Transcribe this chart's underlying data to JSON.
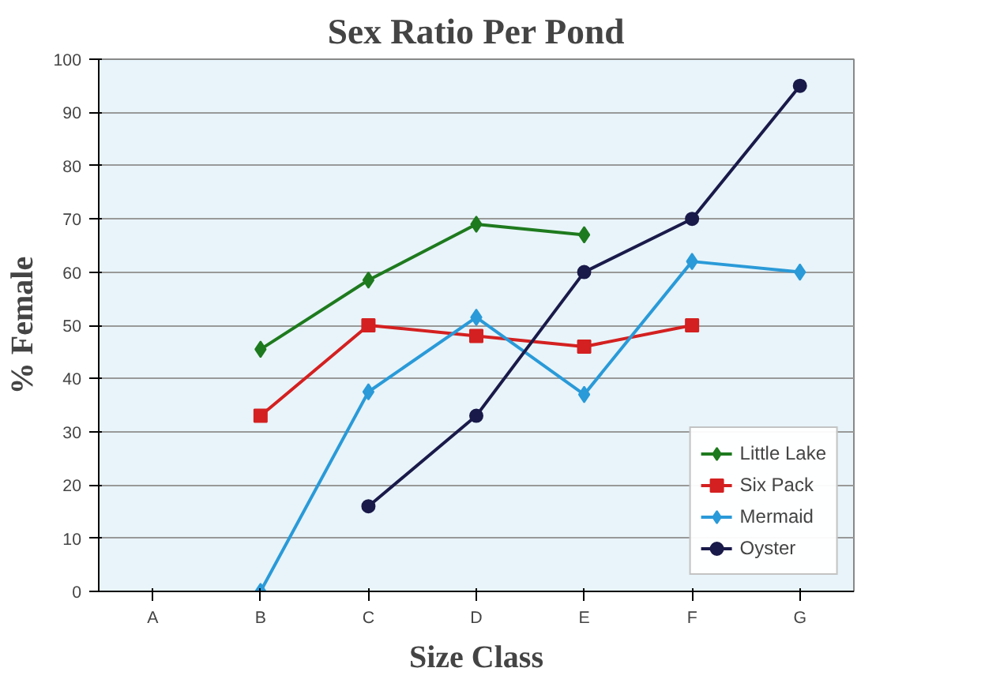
{
  "chart_data": {
    "type": "line",
    "title": "Sex Ratio Per Pond",
    "xlabel": "Size Class",
    "ylabel": "% Female",
    "categories": [
      "A",
      "B",
      "C",
      "D",
      "E",
      "F",
      "G"
    ],
    "series": [
      {
        "name": "Little Lake",
        "color": "#1e7a1e",
        "marker": "diamond",
        "values": [
          null,
          45.5,
          58.5,
          69,
          67,
          null,
          null
        ]
      },
      {
        "name": "Six Pack",
        "color": "#d42020",
        "marker": "square",
        "values": [
          null,
          33,
          50,
          48,
          46,
          50,
          null
        ]
      },
      {
        "name": "Mermaid",
        "color": "#2a9ad8",
        "marker": "diamond",
        "values": [
          null,
          0,
          37.5,
          51.5,
          37,
          62,
          60
        ]
      },
      {
        "name": "Oyster",
        "color": "#1a1a4a",
        "marker": "circle",
        "values": [
          null,
          null,
          16,
          33,
          60,
          70,
          95
        ]
      }
    ],
    "ylim": [
      0,
      100
    ],
    "yticks": [
      0,
      10,
      20,
      30,
      40,
      50,
      60,
      70,
      80,
      90,
      100
    ],
    "grid": "y",
    "legend": "bottom right"
  }
}
